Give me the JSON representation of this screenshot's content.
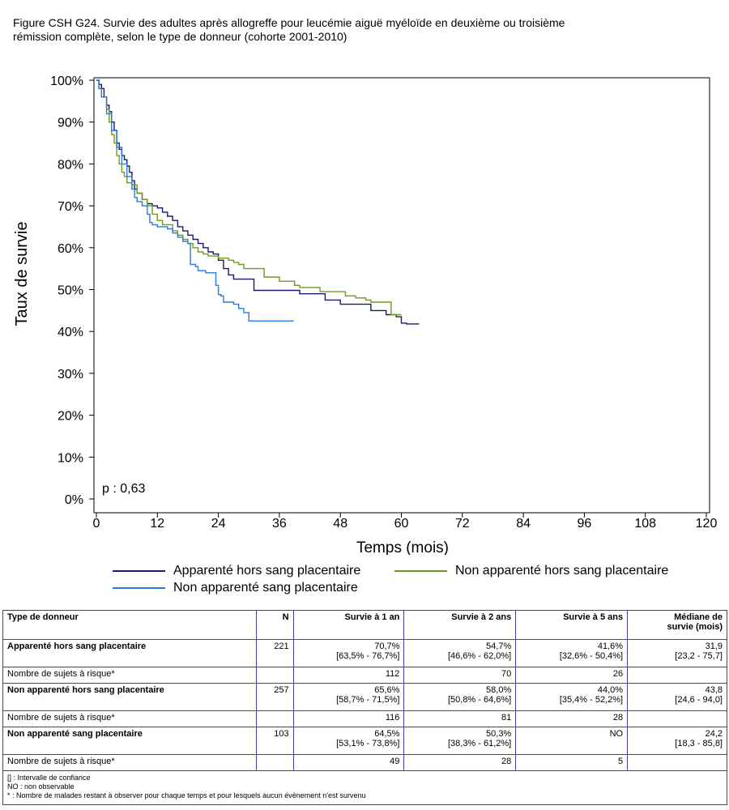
{
  "title": {
    "line1": "Figure CSH G24. Survie des adultes après allogreffe pour leucémie aiguë myéloïde en deuxième ou troisième",
    "line2": "rémission complète, selon le type de donneur (cohorte 2001-2010)"
  },
  "chart_data": {
    "type": "line",
    "subtype": "kaplan-meier step",
    "xlabel": "Temps (mois)",
    "ylabel": "Taux de survie",
    "xlim": [
      0,
      120
    ],
    "ylim": [
      0,
      100
    ],
    "x_ticks": [
      "0",
      "12",
      "24",
      "36",
      "48",
      "60",
      "72",
      "84",
      "96",
      "108",
      "120"
    ],
    "y_ticks": [
      "0%",
      "10%",
      "20%",
      "30%",
      "40%",
      "50%",
      "60%",
      "70%",
      "80%",
      "90%",
      "100%"
    ],
    "annotation": "p : 0,63",
    "grid": false,
    "legend_position": "bottom",
    "series": [
      {
        "name": "Apparenté hors sang placentaire",
        "color": "#1a1a6e",
        "points": [
          [
            0,
            100
          ],
          [
            0.5,
            99
          ],
          [
            1,
            98
          ],
          [
            1.5,
            96
          ],
          [
            2,
            94
          ],
          [
            2.5,
            92.5
          ],
          [
            3,
            90
          ],
          [
            3.5,
            88
          ],
          [
            4,
            85
          ],
          [
            4.5,
            83.5
          ],
          [
            5,
            82
          ],
          [
            5.5,
            81
          ],
          [
            6,
            79.5
          ],
          [
            6.5,
            78
          ],
          [
            7,
            76
          ],
          [
            7.5,
            74
          ],
          [
            8,
            73
          ],
          [
            9,
            71.5
          ],
          [
            10,
            70.5
          ],
          [
            11,
            70
          ],
          [
            12,
            69.5
          ],
          [
            13,
            68.5
          ],
          [
            14,
            67.5
          ],
          [
            15,
            66.5
          ],
          [
            16,
            65
          ],
          [
            17,
            64
          ],
          [
            18,
            63
          ],
          [
            19,
            62
          ],
          [
            20,
            61
          ],
          [
            21,
            60
          ],
          [
            22,
            59
          ],
          [
            23,
            58.5
          ],
          [
            24,
            57
          ],
          [
            25,
            55
          ],
          [
            26,
            53.5
          ],
          [
            27,
            52.5
          ],
          [
            30,
            52.5
          ],
          [
            31,
            49.8
          ],
          [
            39,
            49.8
          ],
          [
            40,
            49
          ],
          [
            44,
            49
          ],
          [
            45,
            47.5
          ],
          [
            47,
            47.5
          ],
          [
            48,
            46.5
          ],
          [
            53,
            46.5
          ],
          [
            54,
            45
          ],
          [
            57,
            44
          ],
          [
            59,
            43.5
          ],
          [
            60,
            42
          ],
          [
            61,
            41.8
          ],
          [
            63.5,
            41.8
          ]
        ]
      },
      {
        "name": "Non apparenté hors sang placentaire",
        "color": "#6f9a1e",
        "points": [
          [
            0,
            100
          ],
          [
            0.5,
            98
          ],
          [
            1,
            96
          ],
          [
            2,
            93
          ],
          [
            2.5,
            90
          ],
          [
            3,
            87
          ],
          [
            3.5,
            85
          ],
          [
            4,
            82
          ],
          [
            4.5,
            80
          ],
          [
            5,
            78
          ],
          [
            5.5,
            77
          ],
          [
            6,
            75.5
          ],
          [
            7,
            75
          ],
          [
            8,
            73
          ],
          [
            9,
            71.5
          ],
          [
            10,
            70
          ],
          [
            11,
            68
          ],
          [
            12,
            66.5
          ],
          [
            13,
            65.5
          ],
          [
            14,
            65.5
          ],
          [
            15,
            64
          ],
          [
            16,
            63
          ],
          [
            17,
            62
          ],
          [
            18,
            61
          ],
          [
            19,
            60
          ],
          [
            20,
            59
          ],
          [
            21,
            58.5
          ],
          [
            22,
            58
          ],
          [
            23,
            58
          ],
          [
            24,
            57.5
          ],
          [
            26,
            57
          ],
          [
            27,
            56.5
          ],
          [
            28,
            56
          ],
          [
            29,
            55
          ],
          [
            32,
            55
          ],
          [
            33,
            53
          ],
          [
            35,
            53
          ],
          [
            36,
            52
          ],
          [
            38,
            52
          ],
          [
            39,
            51
          ],
          [
            40,
            50.5
          ],
          [
            43,
            50.5
          ],
          [
            44,
            49.5
          ],
          [
            48,
            49.5
          ],
          [
            49,
            48.5
          ],
          [
            51,
            48
          ],
          [
            53,
            47.5
          ],
          [
            54,
            47
          ],
          [
            57,
            47
          ],
          [
            58,
            44
          ],
          [
            60,
            44
          ]
        ]
      },
      {
        "name": "Non apparenté sang placentaire",
        "color": "#2a7ae0",
        "points": [
          [
            0,
            100
          ],
          [
            0.5,
            98
          ],
          [
            1,
            96
          ],
          [
            2,
            92
          ],
          [
            3,
            88
          ],
          [
            4,
            84
          ],
          [
            5,
            80
          ],
          [
            6,
            77
          ],
          [
            7,
            74
          ],
          [
            7.5,
            72
          ],
          [
            8,
            71
          ],
          [
            9,
            70
          ],
          [
            10,
            68
          ],
          [
            10.5,
            66
          ],
          [
            11,
            65.5
          ],
          [
            12,
            65
          ],
          [
            14,
            64.5
          ],
          [
            15,
            63.5
          ],
          [
            16,
            62.5
          ],
          [
            17,
            61.5
          ],
          [
            18,
            61
          ],
          [
            18.5,
            56
          ],
          [
            19.5,
            55.5
          ],
          [
            20,
            54.5
          ],
          [
            21,
            54.5
          ],
          [
            21.5,
            54
          ],
          [
            23,
            54
          ],
          [
            23.5,
            51
          ],
          [
            24,
            48.8
          ],
          [
            24.5,
            48.5
          ],
          [
            25,
            47
          ],
          [
            27,
            46.5
          ],
          [
            28,
            45.5
          ],
          [
            29,
            44.5
          ],
          [
            30,
            42.5
          ],
          [
            36,
            42.5
          ],
          [
            38.8,
            42.5
          ]
        ]
      }
    ]
  },
  "legend": {
    "item1": "Apparenté hors sang placentaire",
    "item2": "Non apparenté hors sang placentaire",
    "item3": "Non apparenté sang placentaire"
  },
  "table": {
    "headers": {
      "type": "Type de donneur",
      "n": "N",
      "s1": "Survie à 1 an",
      "s2": "Survie à 2 ans",
      "s5": "Survie à 5 ans",
      "median1": "Médiane de",
      "median2": "survie (mois)"
    },
    "groups": [
      {
        "name": "Apparenté hors sang placentaire",
        "n": "221",
        "s1": "70,7%",
        "s1_ci": "[63,5% - 76,7%]",
        "s2": "54,7%",
        "s2_ci": "[46,6% - 62,0%]",
        "s5": "41,6%",
        "s5_ci": "[32,6% - 50,4%]",
        "median": "31,9",
        "median_ci": "[23,2 - 75,7]",
        "risk_label": "Nombre de sujets à risque*",
        "risk1": "112",
        "risk2": "70",
        "risk5": "26"
      },
      {
        "name": "Non apparenté hors sang placentaire",
        "n": "257",
        "s1": "65,6%",
        "s1_ci": "[58,7% - 71,5%]",
        "s2": "58,0%",
        "s2_ci": "[50,8% - 64,6%]",
        "s5": "44,0%",
        "s5_ci": "[35,4% - 52,2%]",
        "median": "43,8",
        "median_ci": "[24,6 - 94,0]",
        "risk_label": "Nombre de sujets à risque*",
        "risk1": "116",
        "risk2": "81",
        "risk5": "28"
      },
      {
        "name": "Non apparenté sang placentaire",
        "n": "103",
        "s1": "64,5%",
        "s1_ci": "[53,1% - 73,8%]",
        "s2": "50,3%",
        "s2_ci": "[38,3% - 61,2%]",
        "s5": "NO",
        "s5_ci": "",
        "median": "24,2",
        "median_ci": "[18,3 - 85,8]",
        "risk_label": "Nombre de sujets à risque*",
        "risk1": "49",
        "risk2": "28",
        "risk5": "5"
      }
    ],
    "notes": {
      "n1": "[] : Intervalle de confiance",
      "n2": "NO : non observable",
      "n3": "* : Nombre de malades restant à observer pour chaque temps et pour lesquels aucun évènement n'est survenu"
    }
  }
}
